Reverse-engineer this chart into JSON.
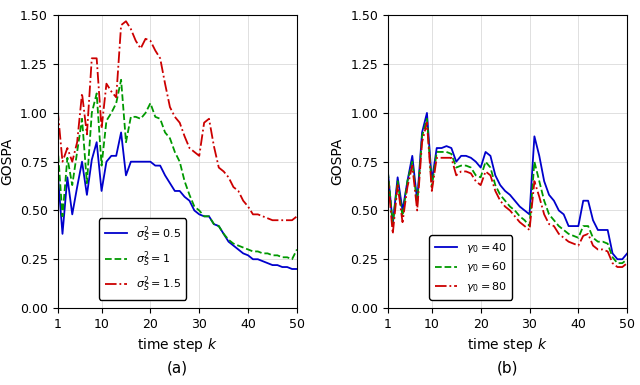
{
  "title_a": "(a)",
  "title_b": "(b)",
  "xlabel": "time step $k$",
  "ylabel": "GOSPA",
  "xlim": [
    1,
    50
  ],
  "ylim": [
    0.0,
    1.5
  ],
  "yticks": [
    0.0,
    0.25,
    0.5,
    0.75,
    1.0,
    1.25,
    1.5
  ],
  "xticks": [
    1,
    10,
    20,
    30,
    40,
    50
  ],
  "plot_a": {
    "legend_labels": [
      "$\\sigma_S^2 = 0.5$",
      "$\\sigma_S^2 = 1$",
      "$\\sigma_S^2 = 1.5$"
    ],
    "colors": [
      "#0000cc",
      "#009900",
      "#cc0000"
    ],
    "linestyles": [
      "-",
      "--",
      "-."
    ],
    "line1": [
      0.7,
      0.38,
      0.67,
      0.48,
      0.62,
      0.75,
      0.58,
      0.76,
      0.85,
      0.6,
      0.75,
      0.78,
      0.78,
      0.9,
      0.68,
      0.75,
      0.75,
      0.75,
      0.75,
      0.75,
      0.73,
      0.73,
      0.68,
      0.64,
      0.6,
      0.6,
      0.57,
      0.55,
      0.5,
      0.48,
      0.47,
      0.47,
      0.43,
      0.42,
      0.38,
      0.34,
      0.32,
      0.3,
      0.28,
      0.27,
      0.25,
      0.25,
      0.24,
      0.23,
      0.22,
      0.22,
      0.21,
      0.21,
      0.2,
      0.2
    ],
    "line2": [
      0.83,
      0.47,
      0.77,
      0.63,
      0.8,
      0.97,
      0.64,
      1.0,
      1.1,
      0.73,
      0.96,
      1.0,
      1.05,
      1.17,
      0.85,
      0.98,
      0.98,
      0.97,
      1.0,
      1.05,
      0.98,
      0.97,
      0.9,
      0.87,
      0.8,
      0.75,
      0.65,
      0.58,
      0.52,
      0.5,
      0.47,
      0.47,
      0.43,
      0.42,
      0.38,
      0.35,
      0.33,
      0.32,
      0.31,
      0.3,
      0.29,
      0.29,
      0.28,
      0.28,
      0.27,
      0.27,
      0.26,
      0.26,
      0.25,
      0.3
    ],
    "line3": [
      1.02,
      0.75,
      0.82,
      0.75,
      0.85,
      1.1,
      0.89,
      1.28,
      1.28,
      0.92,
      1.15,
      1.11,
      1.08,
      1.45,
      1.47,
      1.43,
      1.37,
      1.33,
      1.38,
      1.37,
      1.32,
      1.28,
      1.15,
      1.03,
      0.98,
      0.95,
      0.88,
      0.82,
      0.8,
      0.78,
      0.95,
      0.97,
      0.83,
      0.72,
      0.7,
      0.67,
      0.62,
      0.6,
      0.55,
      0.52,
      0.48,
      0.48,
      0.47,
      0.46,
      0.45,
      0.45,
      0.45,
      0.45,
      0.45,
      0.47
    ]
  },
  "plot_b": {
    "legend_labels": [
      "$\\gamma_0 = 40$",
      "$\\gamma_0 = 60$",
      "$\\gamma_0 = 80$"
    ],
    "colors": [
      "#0000cc",
      "#009900",
      "#cc0000"
    ],
    "linestyles": [
      "-",
      "--",
      "-."
    ],
    "line1": [
      0.7,
      0.43,
      0.67,
      0.5,
      0.65,
      0.78,
      0.55,
      0.9,
      1.0,
      0.65,
      0.82,
      0.82,
      0.83,
      0.82,
      0.75,
      0.78,
      0.78,
      0.77,
      0.75,
      0.72,
      0.8,
      0.78,
      0.68,
      0.63,
      0.6,
      0.58,
      0.55,
      0.52,
      0.5,
      0.48,
      0.88,
      0.78,
      0.65,
      0.58,
      0.55,
      0.5,
      0.48,
      0.42,
      0.42,
      0.42,
      0.55,
      0.55,
      0.45,
      0.4,
      0.4,
      0.4,
      0.28,
      0.25,
      0.25,
      0.28
    ],
    "line2": [
      0.7,
      0.43,
      0.65,
      0.47,
      0.65,
      0.75,
      0.53,
      0.88,
      0.97,
      0.62,
      0.8,
      0.8,
      0.8,
      0.79,
      0.72,
      0.73,
      0.73,
      0.72,
      0.68,
      0.67,
      0.75,
      0.72,
      0.63,
      0.58,
      0.55,
      0.52,
      0.5,
      0.47,
      0.45,
      0.42,
      0.75,
      0.65,
      0.55,
      0.48,
      0.45,
      0.42,
      0.4,
      0.38,
      0.37,
      0.36,
      0.42,
      0.42,
      0.36,
      0.34,
      0.34,
      0.33,
      0.26,
      0.23,
      0.23,
      0.25
    ],
    "line3": [
      0.67,
      0.38,
      0.63,
      0.44,
      0.62,
      0.73,
      0.5,
      0.85,
      0.95,
      0.6,
      0.77,
      0.77,
      0.77,
      0.77,
      0.68,
      0.7,
      0.7,
      0.69,
      0.65,
      0.63,
      0.7,
      0.68,
      0.6,
      0.55,
      0.52,
      0.5,
      0.47,
      0.44,
      0.42,
      0.4,
      0.65,
      0.57,
      0.48,
      0.43,
      0.42,
      0.38,
      0.36,
      0.34,
      0.33,
      0.32,
      0.37,
      0.38,
      0.32,
      0.3,
      0.3,
      0.29,
      0.23,
      0.21,
      0.21,
      0.23
    ]
  }
}
